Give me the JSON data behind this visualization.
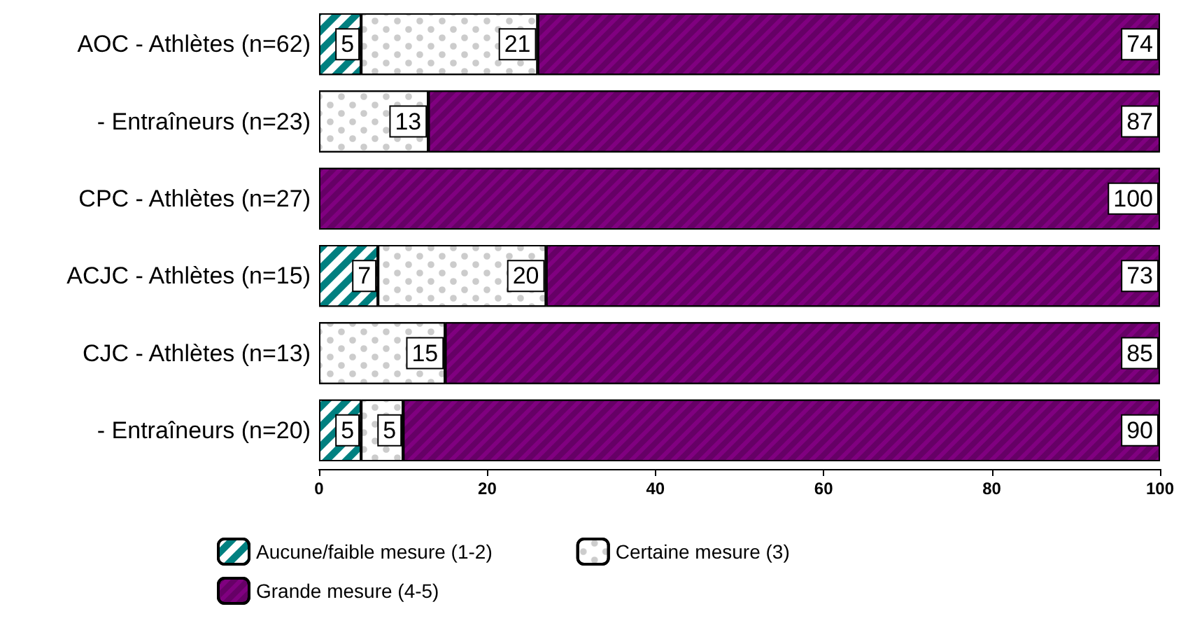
{
  "chart_data": {
    "type": "bar",
    "orientation": "horizontal",
    "stacked": true,
    "data_labels": true,
    "categories": [
      "AOC - Athlètes (n=62)",
      "- Entraîneurs (n=23)",
      "CPC - Athlètes (n=27)",
      "ACJC - Athlètes (n=15)",
      "CJC - Athlètes (n=13)",
      "- Entraîneurs (n=20)"
    ],
    "series": [
      {
        "name": "Aucune/faible mesure (1-2)",
        "color": "#008080",
        "values": [
          5,
          null,
          null,
          7,
          null,
          5
        ]
      },
      {
        "name": "Certaine mesure (3)",
        "color": "#ffffff",
        "values": [
          21,
          13,
          null,
          20,
          15,
          5
        ]
      },
      {
        "name": "Grande mesure (4-5)",
        "color": "#800080",
        "values": [
          74,
          87,
          100,
          73,
          85,
          90
        ]
      }
    ],
    "xlim": [
      0,
      100
    ],
    "xticks": [
      0,
      20,
      40,
      60,
      80,
      100
    ],
    "grid": false,
    "legend": "bottom"
  }
}
